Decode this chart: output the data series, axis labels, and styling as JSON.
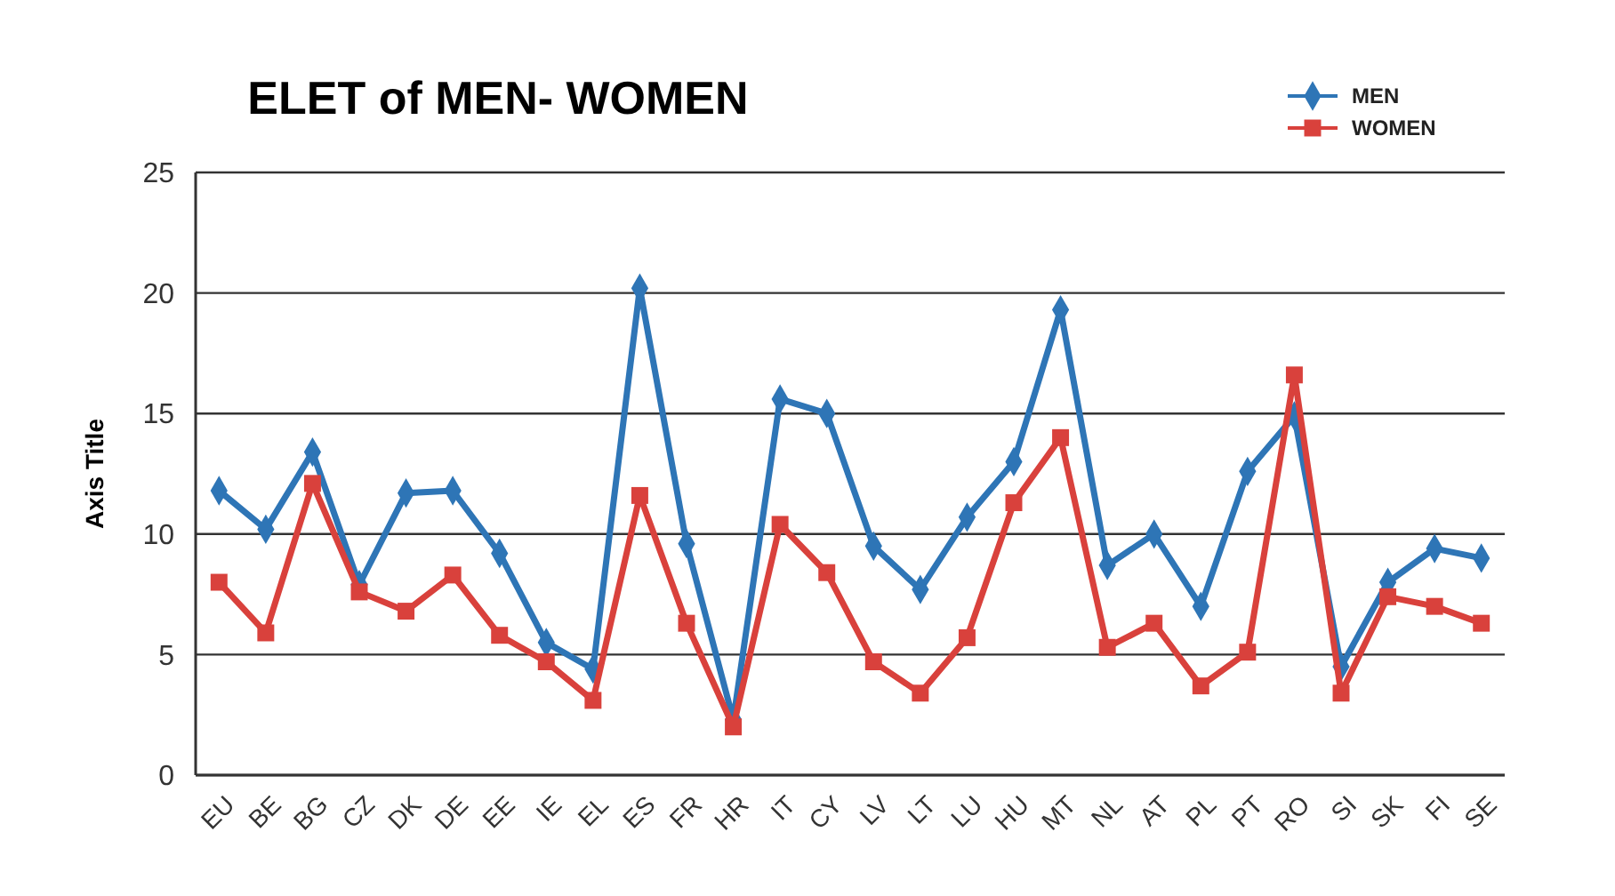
{
  "chart_data": {
    "type": "line",
    "title": "ELET of MEN- WOMEN",
    "ylabel": "Axis Title",
    "categories": [
      "EU",
      "BE",
      "BG",
      "CZ",
      "DK",
      "DE",
      "EE",
      "IE",
      "EL",
      "ES",
      "FR",
      "HR",
      "IT",
      "CY",
      "LV",
      "LT",
      "LU",
      "HU",
      "MT",
      "NL",
      "AT",
      "PL",
      "PT",
      "RO",
      "SI",
      "SK",
      "FI",
      "SE"
    ],
    "series": [
      {
        "name": "MEN",
        "color": "#2e75b6",
        "marker": "diamond",
        "values": [
          11.8,
          10.2,
          13.4,
          7.9,
          11.7,
          11.8,
          9.2,
          5.5,
          4.4,
          20.2,
          9.6,
          2.3,
          15.6,
          15.0,
          9.5,
          7.7,
          10.7,
          13.0,
          19.3,
          8.7,
          10.0,
          7.0,
          12.6,
          14.9,
          4.5,
          8.0,
          9.4,
          9.0
        ]
      },
      {
        "name": "WOMEN",
        "color": "#d9413c",
        "marker": "square",
        "values": [
          8.0,
          5.9,
          12.1,
          7.6,
          6.8,
          8.3,
          5.8,
          4.7,
          3.1,
          11.6,
          6.3,
          2.0,
          10.4,
          8.4,
          4.7,
          3.4,
          5.7,
          11.3,
          14.0,
          5.3,
          6.3,
          3.7,
          5.1,
          16.6,
          3.4,
          7.4,
          7.0,
          6.3
        ]
      }
    ],
    "ylim": [
      0,
      25
    ],
    "yticks": [
      0,
      5,
      10,
      15,
      20,
      25
    ],
    "grid": "y",
    "legend": "top right",
    "line_style": "solid"
  }
}
